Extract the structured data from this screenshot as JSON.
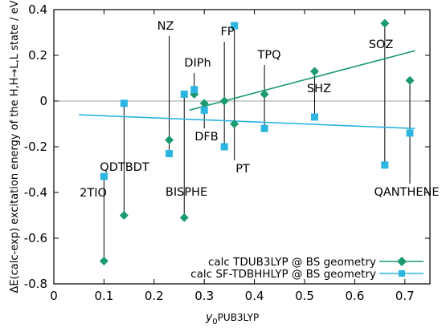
{
  "chart_data": {
    "type": "scatter",
    "title": "",
    "xlabel_main": "y",
    "xlabel_sub": "0",
    "xlabel_suffix": "PUB3LYP",
    "ylabel": "ΔE(calc-exp) excitation energy of the H,H→L,L state / eV",
    "xlim": [
      0,
      0.75
    ],
    "ylim": [
      -0.8,
      0.4
    ],
    "x_ticks": [
      "0",
      "0.1",
      "0.2",
      "0.3",
      "0.4",
      "0.5",
      "0.6",
      "0.7"
    ],
    "y_ticks": [
      "-0.8",
      "-0.6",
      "-0.4",
      "-0.2",
      "0",
      "0.2",
      "0.4"
    ],
    "grid": false,
    "legend_position": "bottom-right",
    "zero_line": true,
    "series": [
      {
        "name": "calc TDUB3LYP @ BS geometry",
        "color": "#1a9a6e",
        "marker": "diamond",
        "x": [
          0.1,
          0.14,
          0.23,
          0.26,
          0.28,
          0.3,
          0.34,
          0.36,
          0.42,
          0.52,
          0.66,
          0.71
        ],
        "values": [
          -0.7,
          -0.5,
          -0.17,
          -0.51,
          0.03,
          -0.01,
          0.0,
          -0.1,
          0.03,
          0.13,
          0.34,
          0.09
        ],
        "fit": {
          "x": [
            0.27,
            0.72
          ],
          "y": [
            -0.04,
            0.22
          ]
        }
      },
      {
        "name": "calc SF-TDBHHLYP @ BS geometry",
        "color": "#2bb5e0",
        "marker": "square",
        "x": [
          0.1,
          0.14,
          0.23,
          0.26,
          0.28,
          0.3,
          0.34,
          0.36,
          0.42,
          0.52,
          0.66,
          0.71
        ],
        "values": [
          -0.33,
          -0.01,
          -0.23,
          0.03,
          0.05,
          -0.04,
          -0.2,
          0.33,
          -0.12,
          -0.07,
          -0.28,
          -0.14
        ],
        "fit": {
          "x": [
            0.05,
            0.72
          ],
          "y": [
            -0.06,
            -0.12
          ]
        }
      }
    ],
    "labels": [
      {
        "text": "2TIO",
        "x": 0.1
      },
      {
        "text": "QDTBDT",
        "x": 0.14
      },
      {
        "text": "NZ",
        "x": 0.23
      },
      {
        "text": "BISPHE",
        "x": 0.26
      },
      {
        "text": "DIPh",
        "x": 0.28
      },
      {
        "text": "DFB",
        "x": 0.3
      },
      {
        "text": "FP",
        "x": 0.34
      },
      {
        "text": "PT",
        "x": 0.36
      },
      {
        "text": "TPQ",
        "x": 0.42
      },
      {
        "text": "SHZ",
        "x": 0.52
      },
      {
        "text": "SOZ",
        "x": 0.66
      },
      {
        "text": "QANTHENE",
        "x": 0.71
      }
    ]
  }
}
